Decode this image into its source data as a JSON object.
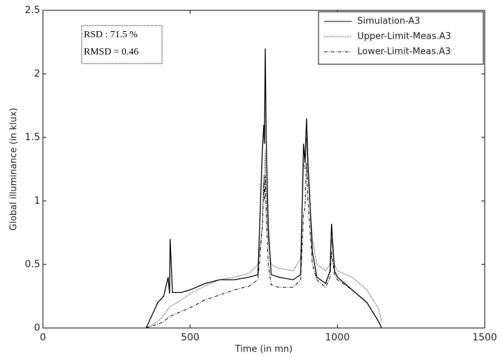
{
  "chart_data": {
    "type": "line",
    "x_label": "Time (in mn)",
    "y_label": "Global illuminance (in klux)",
    "annotations": [
      "RSD : 71.5 %",
      "RMSD = 0.46"
    ],
    "x": [
      350,
      390,
      410,
      425,
      430,
      432,
      440,
      470,
      500,
      550,
      600,
      650,
      700,
      730,
      745,
      750,
      752,
      755,
      758,
      765,
      775,
      800,
      850,
      875,
      885,
      890,
      895,
      900,
      915,
      930,
      960,
      975,
      980,
      990,
      1000,
      1050,
      1100,
      1140,
      1150
    ],
    "series": [
      {
        "name": "Simulation-A3",
        "color": "#000000",
        "dash": "solid",
        "values": [
          0,
          0.2,
          0.25,
          0.4,
          0.27,
          0.7,
          0.28,
          0.28,
          0.3,
          0.35,
          0.38,
          0.38,
          0.4,
          0.42,
          1.4,
          1.6,
          1.45,
          2.2,
          1.5,
          0.8,
          0.42,
          0.4,
          0.38,
          0.42,
          1.45,
          1.3,
          1.65,
          1.3,
          0.6,
          0.4,
          0.35,
          0.45,
          0.82,
          0.45,
          0.4,
          0.3,
          0.2,
          0.05,
          0
        ]
      },
      {
        "name": "Upper-Limit-Meas.A3",
        "color": "#000000",
        "dash": "dotted",
        "values": [
          0,
          0.05,
          0.1,
          0.15,
          0.16,
          0.17,
          0.18,
          0.22,
          0.27,
          0.33,
          0.38,
          0.4,
          0.43,
          0.5,
          0.8,
          1.2,
          1.15,
          1.4,
          1.1,
          0.7,
          0.5,
          0.47,
          0.45,
          0.55,
          1.3,
          1.25,
          1.5,
          1.2,
          0.7,
          0.5,
          0.45,
          0.5,
          0.7,
          0.5,
          0.45,
          0.4,
          0.3,
          0.15,
          0.05
        ]
      },
      {
        "name": "Lower-Limit-Meas.A3",
        "color": "#000000",
        "dash": "dashdot",
        "values": [
          0,
          0.03,
          0.05,
          0.08,
          0.09,
          0.09,
          0.1,
          0.13,
          0.16,
          0.22,
          0.26,
          0.3,
          0.33,
          0.38,
          0.8,
          1.15,
          1.0,
          1.2,
          0.9,
          0.5,
          0.34,
          0.32,
          0.32,
          0.38,
          0.9,
          0.95,
          1.3,
          1.0,
          0.5,
          0.38,
          0.32,
          0.4,
          0.6,
          0.42,
          0.38,
          0.3,
          0.2,
          0.05,
          0
        ]
      }
    ],
    "xlim": [
      0,
      1500
    ],
    "xticks": [
      0,
      500,
      1000,
      1500
    ],
    "ylim": [
      0,
      2.5
    ],
    "yticks": [
      0,
      0.5,
      1,
      1.5,
      2,
      2.5
    ],
    "legend": "upper right"
  }
}
